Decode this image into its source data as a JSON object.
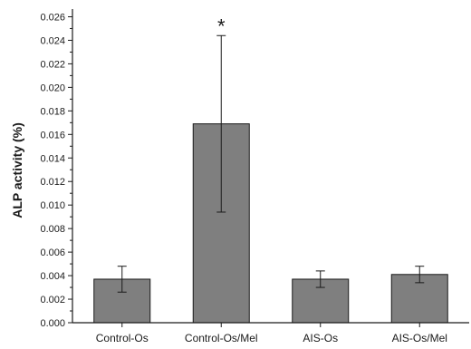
{
  "chart_data": {
    "type": "bar",
    "ylabel": "ALP activity (%)",
    "xlabel": "",
    "categories": [
      "Control-Os",
      "Control-Os/Mel",
      "AIS-Os",
      "AIS-Os/Mel"
    ],
    "values": [
      0.0037,
      0.0169,
      0.0037,
      0.0041
    ],
    "errors": [
      0.0011,
      0.0075,
      0.0007,
      0.0007
    ],
    "annotations": [
      {
        "category": "Control-Os/Mel",
        "text": "*"
      }
    ],
    "ylim": [
      0,
      0.0265
    ],
    "yticks": [
      "0.000",
      "0.002",
      "0.004",
      "0.006",
      "0.008",
      "0.010",
      "0.012",
      "0.014",
      "0.016",
      "0.018",
      "0.020",
      "0.022",
      "0.024",
      "0.026"
    ],
    "bar_color": "#7f7f7f",
    "grid": false,
    "legend": "none"
  }
}
